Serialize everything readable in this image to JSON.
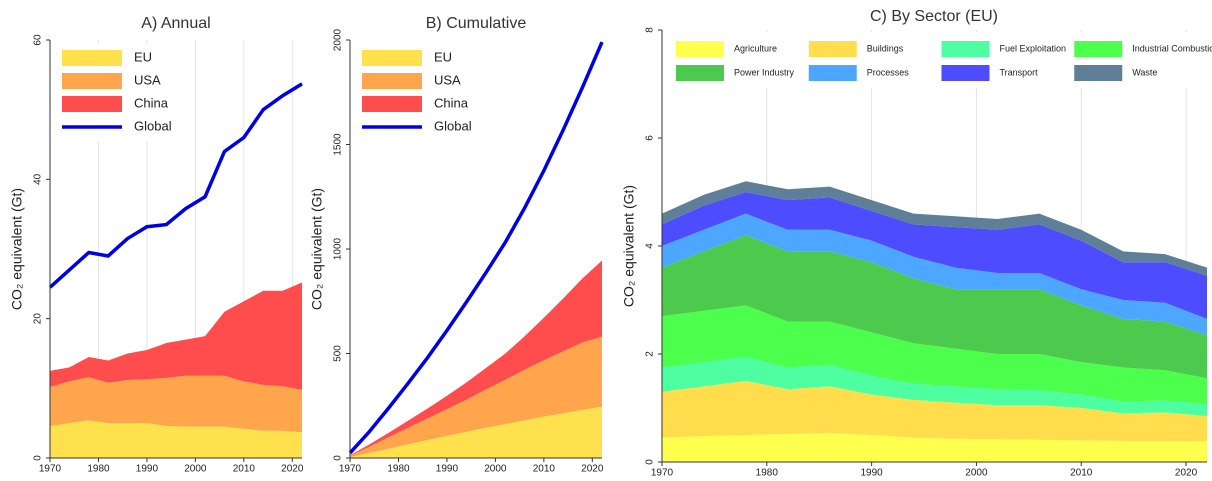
{
  "chart_data": [
    {
      "type": "area",
      "title": "A) Annual",
      "ylabel": "CO₂ equivalent (Gt)",
      "x": [
        1970,
        1974,
        1978,
        1982,
        1986,
        1990,
        1994,
        1998,
        2002,
        2006,
        2010,
        2014,
        2018,
        2022
      ],
      "xlim": [
        1970,
        2022
      ],
      "xticks": [
        1970,
        1980,
        1990,
        2000,
        2010,
        2020
      ],
      "ylim": [
        0,
        60
      ],
      "yticks": [
        0,
        20,
        40,
        60
      ],
      "grid": true,
      "legend": "upper left",
      "series": [
        {
          "name": "EU",
          "color": "#ffe14d",
          "mark": "area",
          "values": [
            4.6,
            5.0,
            5.4,
            5.0,
            5.0,
            5.0,
            4.6,
            4.5,
            4.5,
            4.5,
            4.2,
            3.9,
            3.9,
            3.7
          ]
        },
        {
          "name": "USA",
          "color": "#ffa64d",
          "mark": "area",
          "values": [
            5.6,
            6.0,
            6.2,
            5.8,
            6.2,
            6.3,
            6.9,
            7.3,
            7.3,
            7.3,
            6.8,
            6.6,
            6.4,
            6.1
          ]
        },
        {
          "name": "China",
          "color": "#ff4d4d",
          "mark": "area",
          "values": [
            2.3,
            2.0,
            2.9,
            3.2,
            3.8,
            4.2,
            5.0,
            5.2,
            5.7,
            9.2,
            11.5,
            13.5,
            13.7,
            15.4
          ]
        },
        {
          "name": "Global",
          "color": "#0000e6",
          "mark": "line",
          "values": [
            24.5,
            27,
            29.5,
            29,
            31.5,
            33.2,
            33.5,
            35.8,
            37.5,
            44,
            46,
            50,
            52,
            53.7
          ]
        }
      ]
    },
    {
      "type": "area",
      "title": "B) Cumulative",
      "ylabel": "CO₂ equivalent (Gt)",
      "x": [
        1970,
        1974,
        1978,
        1982,
        1986,
        1990,
        1994,
        1998,
        2002,
        2006,
        2010,
        2014,
        2018,
        2022
      ],
      "xlim": [
        1970,
        2022
      ],
      "xticks": [
        1970,
        1980,
        1990,
        2000,
        2010,
        2020
      ],
      "ylim": [
        0,
        2000
      ],
      "yticks": [
        0,
        500,
        1000,
        1500,
        2000
      ],
      "grid": false,
      "legend": "upper left",
      "series": [
        {
          "name": "EU",
          "color": "#ffe14d",
          "mark": "area",
          "values": [
            5,
            24,
            45,
            66,
            86,
            106,
            125,
            144,
            162,
            180,
            198,
            214,
            230,
            245
          ]
        },
        {
          "name": "USA",
          "color": "#ffa64d",
          "mark": "area",
          "values": [
            6,
            30,
            55,
            79,
            103,
            128,
            154,
            183,
            212,
            242,
            270,
            297,
            323,
            335
          ]
        },
        {
          "name": "China",
          "color": "#ff4d4d",
          "mark": "area",
          "values": [
            2,
            11,
            21,
            34,
            48,
            64,
            82,
            103,
            125,
            160,
            203,
            253,
            307,
            365
          ]
        },
        {
          "name": "Global",
          "color": "#0000e6",
          "mark": "line",
          "values": [
            24,
            126,
            240,
            358,
            480,
            610,
            745,
            885,
            1030,
            1195,
            1375,
            1570,
            1775,
            1990
          ]
        }
      ]
    },
    {
      "type": "area",
      "title": "C) By Sector (EU)",
      "ylabel": "CO₂ equivalent (Gt)",
      "x": [
        1970,
        1974,
        1978,
        1982,
        1986,
        1990,
        1994,
        1998,
        2002,
        2006,
        2010,
        2014,
        2018,
        2022
      ],
      "xlim": [
        1970,
        2022
      ],
      "xticks": [
        1970,
        1980,
        1990,
        2000,
        2010,
        2020
      ],
      "ylim": [
        0,
        8
      ],
      "yticks": [
        0,
        2,
        4,
        6,
        8
      ],
      "grid": true,
      "legend": "top",
      "series": [
        {
          "name": "Agriculture",
          "color": "#ffff4d",
          "mark": "area",
          "values": [
            0.45,
            0.48,
            0.5,
            0.52,
            0.54,
            0.5,
            0.45,
            0.43,
            0.42,
            0.41,
            0.4,
            0.39,
            0.39,
            0.38
          ]
        },
        {
          "name": "Buildings",
          "color": "#ffdd4d",
          "mark": "area",
          "values": [
            0.85,
            0.92,
            1.0,
            0.83,
            0.86,
            0.75,
            0.7,
            0.67,
            0.63,
            0.64,
            0.6,
            0.51,
            0.53,
            0.47
          ]
        },
        {
          "name": "Fuel Exploitation",
          "color": "#4dffa0",
          "mark": "area",
          "values": [
            0.45,
            0.45,
            0.45,
            0.4,
            0.4,
            0.35,
            0.3,
            0.3,
            0.3,
            0.28,
            0.25,
            0.22,
            0.22,
            0.22
          ]
        },
        {
          "name": "Industrial Combustion",
          "color": "#4dff4d",
          "mark": "area",
          "values": [
            0.95,
            0.95,
            0.95,
            0.85,
            0.8,
            0.8,
            0.75,
            0.7,
            0.65,
            0.67,
            0.6,
            0.63,
            0.56,
            0.48
          ]
        },
        {
          "name": "Power Industry",
          "color": "#4dc94d",
          "mark": "area",
          "values": [
            0.9,
            1.1,
            1.3,
            1.3,
            1.3,
            1.3,
            1.2,
            1.1,
            1.2,
            1.2,
            1.05,
            0.9,
            0.9,
            0.8
          ]
        },
        {
          "name": "Processes",
          "color": "#4da6ff",
          "mark": "area",
          "values": [
            0.4,
            0.4,
            0.4,
            0.4,
            0.4,
            0.4,
            0.4,
            0.4,
            0.3,
            0.3,
            0.3,
            0.35,
            0.35,
            0.3
          ]
        },
        {
          "name": "Transport",
          "color": "#4d4dff",
          "mark": "area",
          "values": [
            0.4,
            0.45,
            0.4,
            0.55,
            0.6,
            0.55,
            0.6,
            0.75,
            0.8,
            0.9,
            0.9,
            0.7,
            0.75,
            0.8
          ]
        },
        {
          "name": "Waste",
          "color": "#5f7f99",
          "mark": "area",
          "values": [
            0.2,
            0.2,
            0.2,
            0.2,
            0.2,
            0.2,
            0.2,
            0.2,
            0.2,
            0.2,
            0.2,
            0.2,
            0.15,
            0.15
          ]
        }
      ]
    }
  ]
}
